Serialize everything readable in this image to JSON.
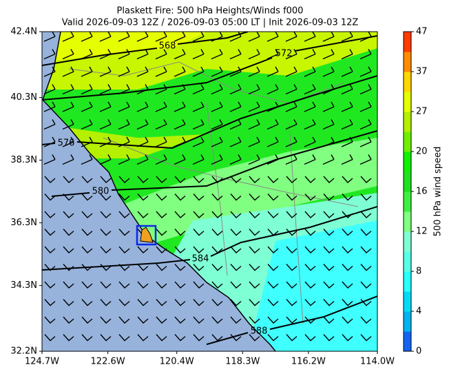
{
  "title": "Plaskett Fire: 500 hPa Heights/Winds f000",
  "subtitle": "Valid 2026-09-03 12Z / 2026-09-03 05:00 LT | Init 2026-09-03 12Z",
  "map": {
    "lat_range": [
      32.2,
      42.4
    ],
    "lon_range": [
      -124.7,
      -114.0
    ],
    "lat_ticks": [
      {
        "value": 42.4,
        "label": "42.4N"
      },
      {
        "value": 40.3,
        "label": "40.3N"
      },
      {
        "value": 38.3,
        "label": "38.3N"
      },
      {
        "value": 36.3,
        "label": "36.3N"
      },
      {
        "value": 34.3,
        "label": "34.3N"
      },
      {
        "value": 32.2,
        "label": "32.2N"
      }
    ],
    "lon_ticks": [
      {
        "value": -124.7,
        "label": "124.7W"
      },
      {
        "value": -122.6,
        "label": "122.6W"
      },
      {
        "value": -120.4,
        "label": "120.4W"
      },
      {
        "value": -118.3,
        "label": "118.3W"
      },
      {
        "value": -116.2,
        "label": "116.2W"
      },
      {
        "value": -114.0,
        "label": "114.0W"
      }
    ],
    "contour_labels": [
      568,
      572,
      576,
      580,
      584,
      588
    ]
  },
  "colorbar": {
    "label": "500 hPa wind speed",
    "ticks": [
      0,
      4,
      8,
      12,
      16,
      20,
      27,
      37,
      47
    ],
    "colors": [
      "#1464f0",
      "#00b4f0",
      "#00dcf8",
      "#28ffff",
      "#5affe8",
      "#7fffd4",
      "#80ff80",
      "#40f040",
      "#20e020",
      "#10f000",
      "#70f000",
      "#b4f000",
      "#e6ff00",
      "#ffd700",
      "#ff8c00",
      "#ff3c00"
    ]
  }
}
